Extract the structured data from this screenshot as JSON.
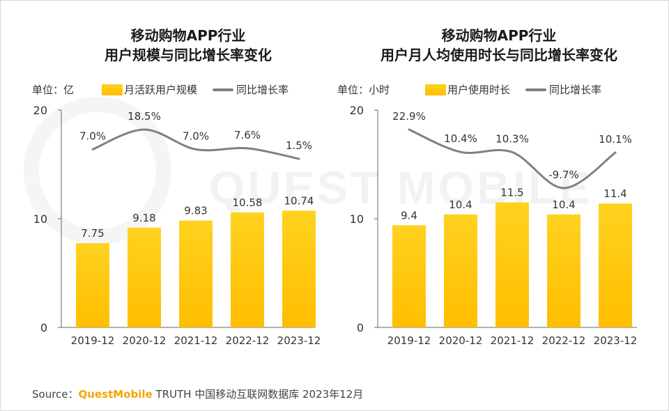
{
  "source": {
    "prefix": "Source：",
    "brand": "QuestMobile",
    "suffix": " TRUTH 中国移动互联网数据库 2023年12月"
  },
  "watermark": "QUEST MOBILE",
  "colors": {
    "bar_top": "#ffd21f",
    "bar_bottom": "#ffbe00",
    "line": "#808080",
    "brand": "#f6a400"
  },
  "chart_data": [
    {
      "type": "bar",
      "title_lines": [
        "移动购物APP行业",
        "用户规模与同比增长率变化"
      ],
      "unit": "单位：亿",
      "categories": [
        "2019-12",
        "2020-12",
        "2021-12",
        "2022-12",
        "2023-12"
      ],
      "ylim": [
        0,
        20
      ],
      "yticks": [
        "0",
        "10",
        "20"
      ],
      "series": [
        {
          "name": "月活跃用户规模",
          "type": "bar",
          "values": [
            7.75,
            9.18,
            9.83,
            10.58,
            10.74
          ],
          "labels": [
            "7.75",
            "9.18",
            "9.83",
            "10.58",
            "10.74"
          ]
        },
        {
          "name": "同比增长率",
          "type": "line",
          "values": [
            7.0,
            18.5,
            7.0,
            7.6,
            1.5
          ],
          "labels": [
            "7.0%",
            "18.5%",
            "7.0%",
            "7.6%",
            "1.5%"
          ]
        }
      ]
    },
    {
      "type": "bar",
      "title_lines": [
        "移动购物APP行业",
        "用户月人均使用时长与同比增长率变化"
      ],
      "unit": "单位：小时",
      "categories": [
        "2019-12",
        "2020-12",
        "2021-12",
        "2022-12",
        "2023-12"
      ],
      "ylim": [
        0,
        20
      ],
      "yticks": [
        "0",
        "10",
        "20"
      ],
      "series": [
        {
          "name": "用户使用时长",
          "type": "bar",
          "values": [
            9.4,
            10.4,
            11.5,
            10.4,
            11.4
          ],
          "labels": [
            "9.4",
            "10.4",
            "11.5",
            "10.4",
            "11.4"
          ]
        },
        {
          "name": "同比增长率",
          "type": "line",
          "values": [
            22.9,
            10.4,
            10.3,
            -9.7,
            10.1
          ],
          "labels": [
            "22.9%",
            "10.4%",
            "10.3%",
            "-9.7%",
            "10.1%"
          ]
        }
      ]
    }
  ]
}
